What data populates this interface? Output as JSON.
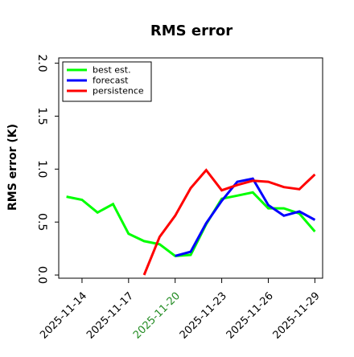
{
  "chart_data": {
    "type": "line",
    "title": "RMS error",
    "xlabel": "",
    "ylabel": "RMS error (K)",
    "ylim": [
      -0.03,
      2.05
    ],
    "xlim": [
      "2025-11-12T12:00",
      "2025-11-29T12:00"
    ],
    "yticks": [
      0.0,
      0.5,
      1.0,
      1.5,
      2.0
    ],
    "ytick_labels": [
      "0.0",
      "0.5",
      "1.0",
      "1.5",
      "2.0"
    ],
    "xticks": [
      "2025-11-14",
      "2025-11-17",
      "2025-11-20",
      "2025-11-23",
      "2025-11-26",
      "2025-11-29"
    ],
    "xtick_labels": [
      "2025-11-14",
      "2025-11-17",
      "2025-11-20",
      "2025-11-23",
      "2025-11-26",
      "2025-11-29"
    ],
    "highlighted_xtick": "2025-11-20",
    "highlight_color": "#228b22",
    "grid": false,
    "legend_position": "upper-left",
    "series": [
      {
        "name": "best est.",
        "color": "#00ff00",
        "points": [
          [
            "2025-11-13",
            0.74
          ],
          [
            "2025-11-14",
            0.71
          ],
          [
            "2025-11-15",
            0.59
          ],
          [
            "2025-11-16",
            0.67
          ],
          [
            "2025-11-17",
            0.39
          ],
          [
            "2025-11-18",
            0.32
          ],
          [
            "2025-11-19",
            0.29
          ],
          [
            "2025-11-20",
            0.18
          ],
          [
            "2025-11-21",
            0.19
          ],
          [
            "2025-11-22",
            0.48
          ],
          [
            "2025-11-23",
            0.72
          ],
          [
            "2025-11-24",
            0.75
          ],
          [
            "2025-11-25",
            0.78
          ],
          [
            "2025-11-26",
            0.63
          ],
          [
            "2025-11-27",
            0.63
          ],
          [
            "2025-11-28",
            0.58
          ],
          [
            "2025-11-29",
            0.41
          ]
        ]
      },
      {
        "name": "forecast",
        "color": "#0000ff",
        "points": [
          [
            "2025-11-20",
            0.18
          ],
          [
            "2025-11-21",
            0.22
          ],
          [
            "2025-11-22",
            0.49
          ],
          [
            "2025-11-23",
            0.7
          ],
          [
            "2025-11-24",
            0.88
          ],
          [
            "2025-11-25",
            0.91
          ],
          [
            "2025-11-26",
            0.66
          ],
          [
            "2025-11-27",
            0.56
          ],
          [
            "2025-11-28",
            0.6
          ],
          [
            "2025-11-29",
            0.52
          ]
        ]
      },
      {
        "name": "persistence",
        "color": "#ff0000",
        "points": [
          [
            "2025-11-18",
            0.0
          ],
          [
            "2025-11-19",
            0.36
          ],
          [
            "2025-11-20",
            0.56
          ],
          [
            "2025-11-21",
            0.82
          ],
          [
            "2025-11-22",
            0.99
          ],
          [
            "2025-11-23",
            0.8
          ],
          [
            "2025-11-24",
            0.85
          ],
          [
            "2025-11-25",
            0.89
          ],
          [
            "2025-11-26",
            0.88
          ],
          [
            "2025-11-27",
            0.83
          ],
          [
            "2025-11-28",
            0.81
          ],
          [
            "2025-11-29",
            0.95
          ]
        ]
      }
    ]
  }
}
